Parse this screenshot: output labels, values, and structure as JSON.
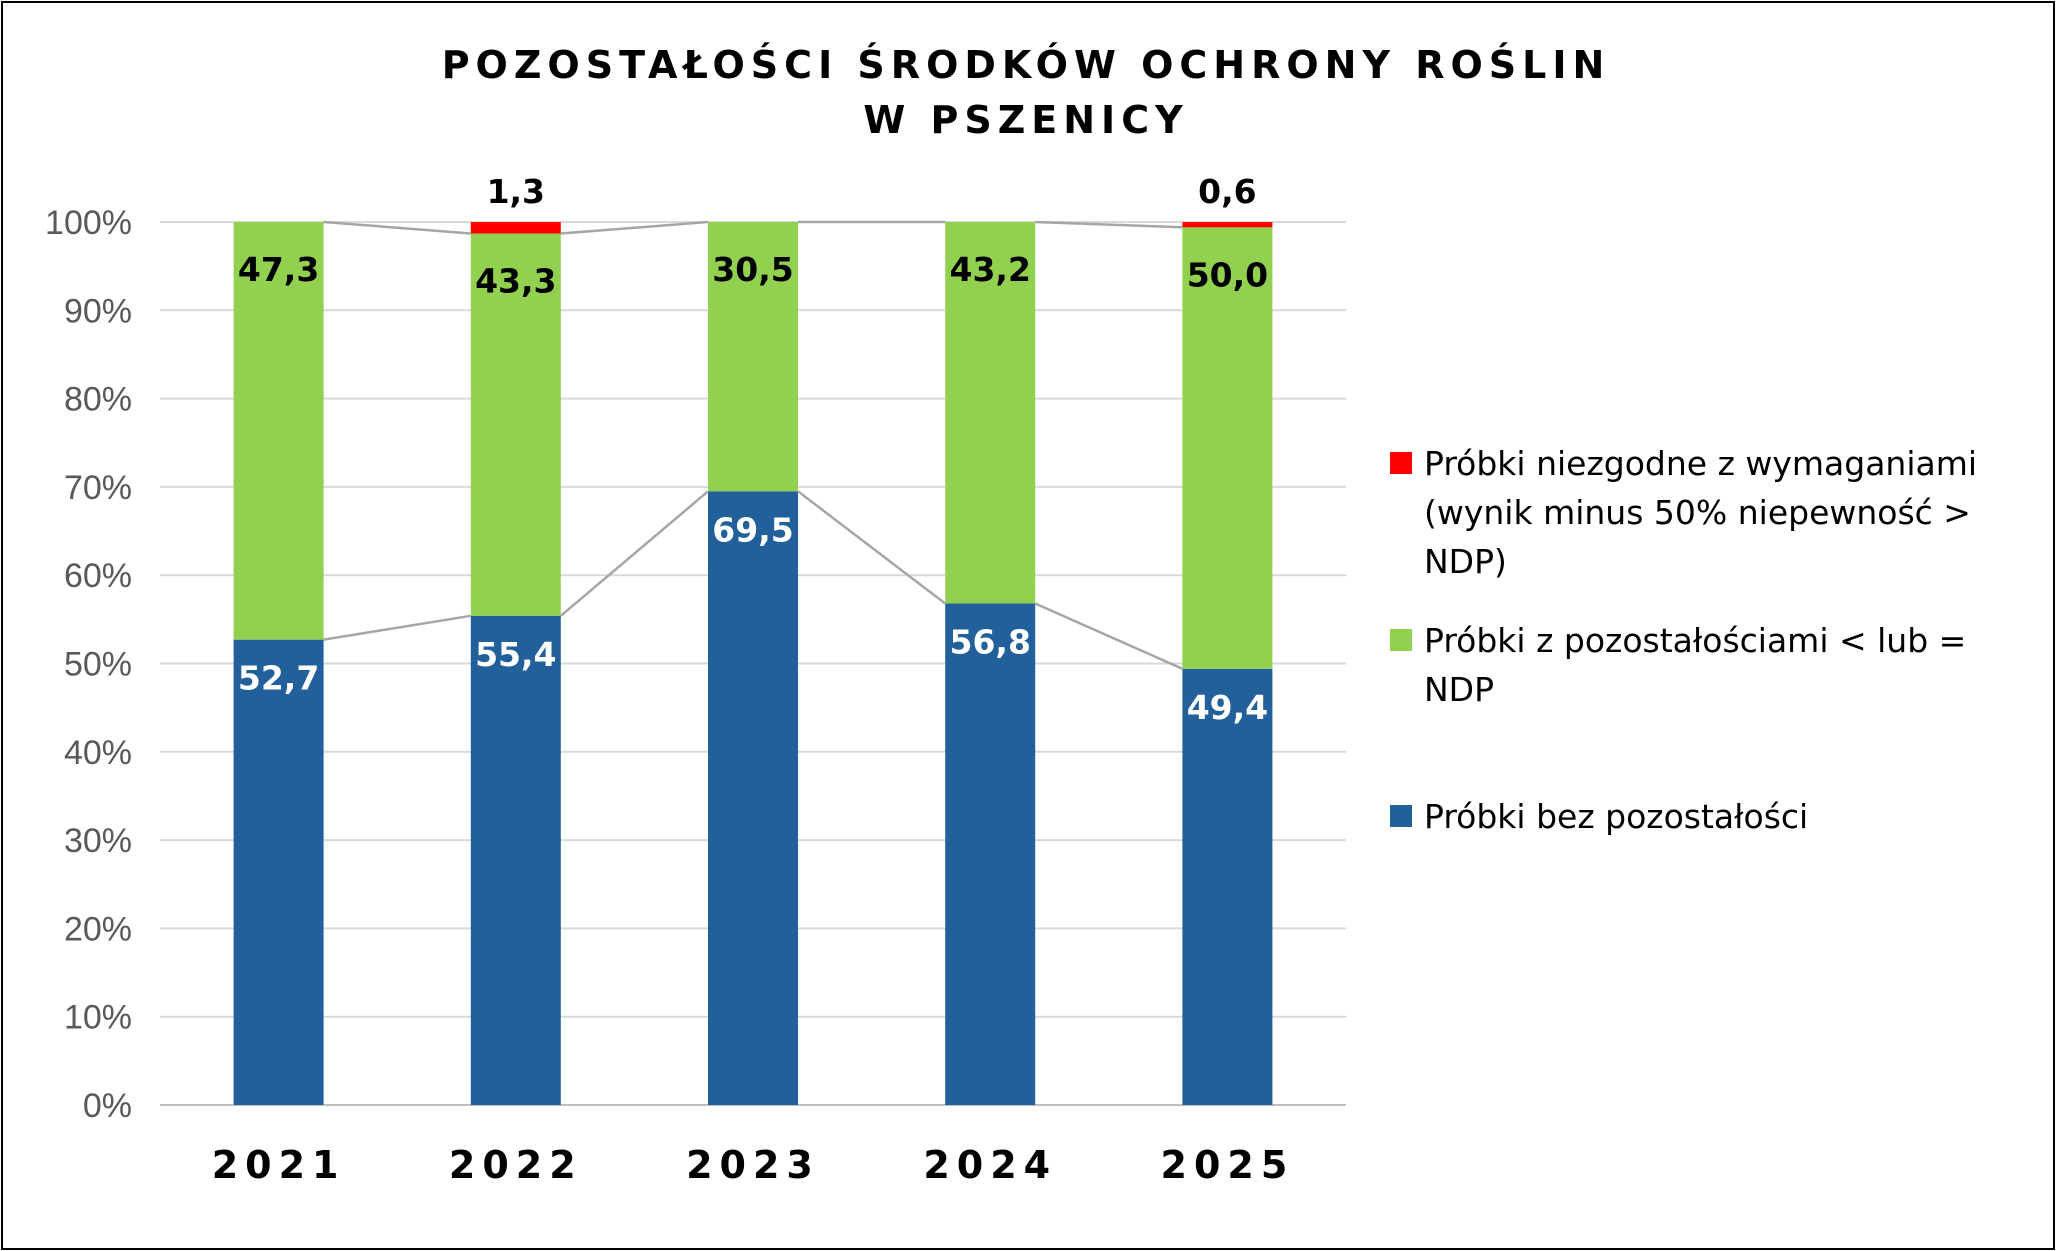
{
  "chart_data": {
    "type": "bar",
    "stacked": true,
    "percent_stacked": true,
    "title": [
      "POZOSTAŁOŚCI ŚRODKÓW OCHRONY ROŚLIN",
      "W PSZENICY"
    ],
    "categories": [
      "2021",
      "2022",
      "2023",
      "2024",
      "2025"
    ],
    "series": [
      {
        "name": "Próbki bez pozostałości",
        "color": "#22609B",
        "label_color": "#FFFFFF",
        "values": [
          52.7,
          55.4,
          69.5,
          56.8,
          49.4
        ],
        "labels": [
          "52,7",
          "55,4",
          "69,5",
          "56,8",
          "49,4"
        ]
      },
      {
        "name": "Próbki z pozostałościami < lub = NDP",
        "color": "#92D050",
        "label_color": "#000000",
        "values": [
          47.3,
          43.3,
          30.5,
          43.2,
          50.0
        ],
        "labels": [
          "47,3",
          "43,3",
          "30,5",
          "43,2",
          "50,0"
        ]
      },
      {
        "name": "Próbki niezgodne z wymaganiami (wynik minus 50% niepewność > NDP)",
        "color": "#FF0000",
        "label_color": "#000000",
        "values": [
          0,
          1.3,
          0,
          0,
          0.6
        ],
        "labels": [
          "",
          "1,3",
          "",
          "",
          "0,6"
        ]
      }
    ],
    "ylim": [
      0,
      100
    ],
    "yticks": [
      "0%",
      "10%",
      "20%",
      "30%",
      "40%",
      "50%",
      "60%",
      "70%",
      "80%",
      "90%",
      "100%"
    ],
    "grid": true,
    "series_lines": true,
    "legend_position": "right",
    "legend_order": [
      2,
      1,
      0
    ],
    "legend_lines": [
      [
        "Próbki niezgodne z wymaganiami",
        "(wynik minus 50% niepewność >",
        "NDP)"
      ],
      [
        "Próbki z pozostałościami < lub =",
        "NDP"
      ],
      [
        "Próbki bez pozostałości"
      ]
    ]
  }
}
